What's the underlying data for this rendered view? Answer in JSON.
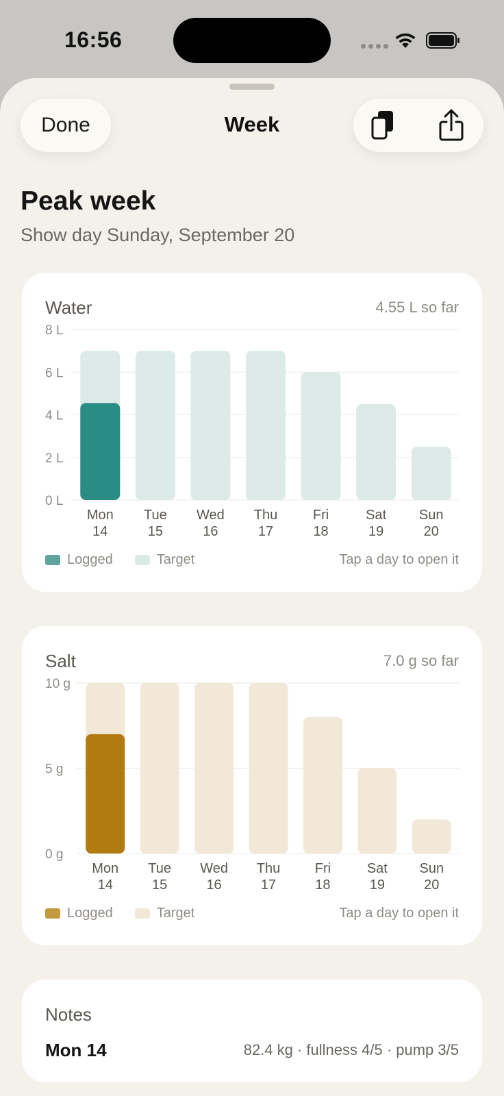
{
  "status": {
    "time": "16:56"
  },
  "sheet": {
    "done_label": "Done",
    "title": "Week",
    "actions": [
      {
        "icon": "copy-icon"
      },
      {
        "icon": "share-icon"
      }
    ]
  },
  "header": {
    "title": "Peak week",
    "subtitle": "Show day Sunday, September 20"
  },
  "colors": {
    "water_logged": "#2a8c84",
    "water_target": "#dceae8",
    "salt_logged": "#b07b10",
    "salt_target": "#f1e8d8"
  },
  "water": {
    "title": "Water",
    "summary": "4.55 L so far",
    "legend_logged": "Logged",
    "legend_target": "Target",
    "hint": "Tap a day to open it"
  },
  "salt": {
    "title": "Salt",
    "summary": "7.0 g so far",
    "legend_logged": "Logged",
    "legend_target": "Target",
    "hint": "Tap a day to open it"
  },
  "chart_data": [
    {
      "type": "bar",
      "title": "Water",
      "unit": "L",
      "categories": [
        [
          "Mon",
          "14"
        ],
        [
          "Tue",
          "15"
        ],
        [
          "Wed",
          "16"
        ],
        [
          "Thu",
          "17"
        ],
        [
          "Fri",
          "18"
        ],
        [
          "Sat",
          "19"
        ],
        [
          "Sun",
          "20"
        ]
      ],
      "yticks": [
        "0 L",
        "2 L",
        "4 L",
        "6 L",
        "8 L"
      ],
      "ylim": [
        0,
        8
      ],
      "series": [
        {
          "name": "Target",
          "values": [
            7,
            7,
            7,
            7,
            6,
            4.5,
            2.5
          ]
        },
        {
          "name": "Logged",
          "values": [
            4.55,
            0,
            0,
            0,
            0,
            0,
            0
          ]
        }
      ],
      "grid": true,
      "legend": "bottom-left"
    },
    {
      "type": "bar",
      "title": "Salt",
      "unit": "g",
      "categories": [
        [
          "Mon",
          "14"
        ],
        [
          "Tue",
          "15"
        ],
        [
          "Wed",
          "16"
        ],
        [
          "Thu",
          "17"
        ],
        [
          "Fri",
          "18"
        ],
        [
          "Sat",
          "19"
        ],
        [
          "Sun",
          "20"
        ]
      ],
      "yticks": [
        "0 g",
        "5 g",
        "10 g"
      ],
      "ylim": [
        0,
        10
      ],
      "series": [
        {
          "name": "Target",
          "values": [
            10,
            10,
            10,
            10,
            8,
            5,
            2
          ]
        },
        {
          "name": "Logged",
          "values": [
            7.0,
            0,
            0,
            0,
            0,
            0,
            0
          ]
        }
      ],
      "grid": true,
      "legend": "bottom-left"
    }
  ],
  "notes": {
    "title": "Notes",
    "day": "Mon 14",
    "text": "82.4 kg · fullness 4/5 · pump 3/5"
  }
}
